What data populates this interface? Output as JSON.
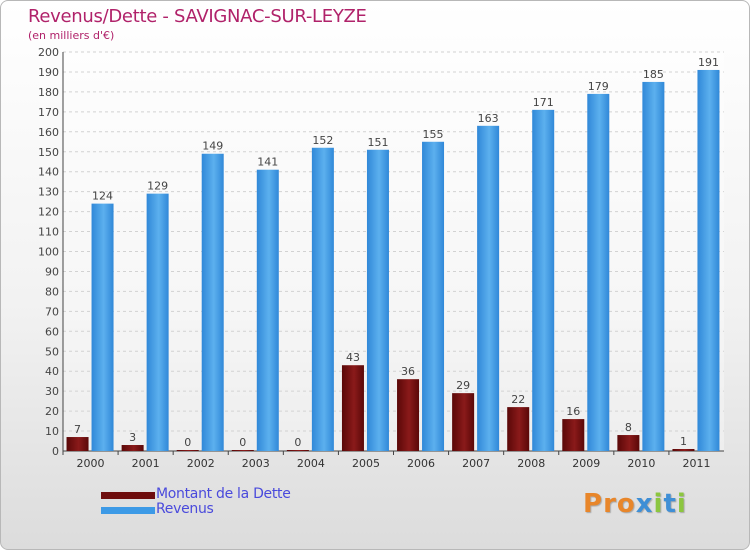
{
  "header": {
    "title": "Revenus/Dette - SAVIGNAC-SUR-LEYZE",
    "subtitle": "(en milliers d'€)"
  },
  "legend": {
    "items": [
      {
        "label": "Montant de la Dette",
        "color": "#6e0d0d"
      },
      {
        "label": "Revenus",
        "color": "#3d9ae6"
      }
    ]
  },
  "logo": {
    "text": "Proxiti",
    "letters": [
      {
        "ch": "P",
        "color": "#e8862a"
      },
      {
        "ch": "r",
        "color": "#e8862a"
      },
      {
        "ch": "o",
        "color": "#e8862a"
      },
      {
        "ch": "x",
        "color": "#3f8fd6"
      },
      {
        "ch": "i",
        "color": "#8cc63f"
      },
      {
        "ch": "t",
        "color": "#3f8fd6"
      },
      {
        "ch": "i",
        "color": "#8cc63f"
      }
    ]
  },
  "chart_data": {
    "type": "bar",
    "title": "Revenus/Dette - SAVIGNAC-SUR-LEYZE",
    "ylabel": "(en milliers d'€)",
    "xlabel": "",
    "categories": [
      "2000",
      "2001",
      "2002",
      "2003",
      "2004",
      "2005",
      "2006",
      "2007",
      "2008",
      "2009",
      "2010",
      "2011"
    ],
    "series": [
      {
        "name": "Montant de la Dette",
        "color": "#6e0d0d",
        "values": [
          7,
          3,
          0,
          0,
          0,
          43,
          36,
          29,
          22,
          16,
          8,
          1
        ]
      },
      {
        "name": "Revenus",
        "color": "#3d9ae6",
        "values": [
          124,
          129,
          149,
          141,
          152,
          151,
          155,
          163,
          171,
          179,
          185,
          191
        ]
      }
    ],
    "ylim": [
      0,
      200
    ],
    "ytick_step": 10,
    "grid": true,
    "legend_position": "bottom-left"
  }
}
